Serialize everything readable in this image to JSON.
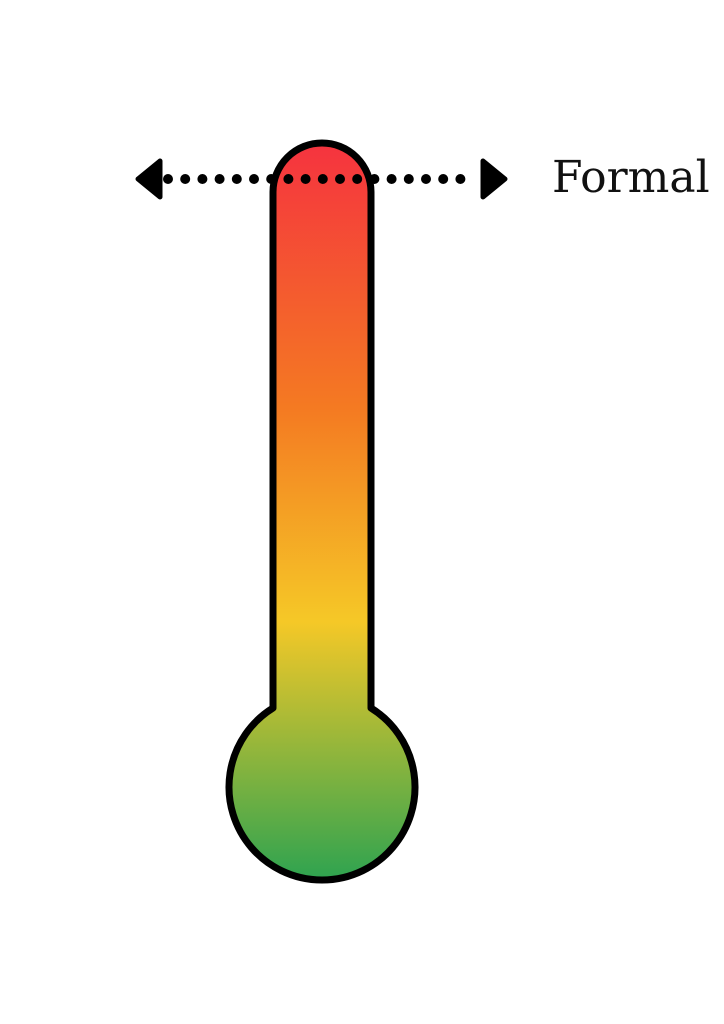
{
  "diagram": {
    "label": "Formal",
    "arrow": "double-headed-dotted-arrow",
    "colors": {
      "top": "#f5333f",
      "upper_mid": "#f47a22",
      "mid": "#f5c827",
      "bottom": "#2ea350",
      "outline": "#000000"
    }
  }
}
